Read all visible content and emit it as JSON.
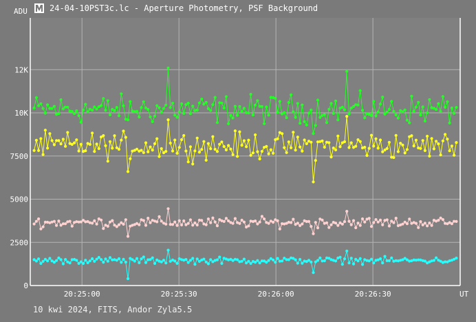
{
  "window": {
    "title": "24-04-10PST3c.lc - Aperture Photometry, PSF Background",
    "icon": "app-logo-icon"
  },
  "footer": {
    "text": "10 kwi 2024, FITS, Andor Zyla5.5"
  },
  "colors": {
    "background": "#7a7a7a",
    "plot_background": "#808080",
    "grid": "#b4b4b4",
    "series_green": "#22ff22",
    "series_yellow": "#ffff22",
    "series_pink": "#ffd2d2",
    "series_cyan": "#22ffff"
  },
  "chart_data": {
    "type": "scatter",
    "ylabel": "ADU",
    "xlabel": "UT",
    "y_ticks": [
      "0",
      "2500",
      "5000",
      "7500",
      "10K",
      "12K"
    ],
    "y_tick_values": [
      0,
      2500,
      5000,
      7500,
      10000,
      12500
    ],
    "x_ticks": [
      "20:25:00",
      "20:25:30",
      "20:26:00",
      "20:26:30"
    ],
    "x_tick_values": [
      "20:25:00",
      "20:25:30",
      "20:26:00",
      "20:26:30"
    ],
    "xlim": [
      "20:24:44",
      "20:26:57"
    ],
    "ylim": [
      0,
      15500
    ],
    "grid": true,
    "markers": "dots connected by lines",
    "series": [
      {
        "color": "#22ff22",
        "mean": 10200,
        "spread": 700,
        "low_dips": [
          9600,
          8800
        ],
        "high_peaks": [
          12600,
          12400
        ]
      },
      {
        "color": "#ffff22",
        "mean": 8100,
        "spread": 650,
        "low_dips": [
          6600,
          6000
        ],
        "high_peaks": [
          9600,
          9800
        ]
      },
      {
        "color": "#ffd2d2",
        "mean": 3650,
        "spread": 250,
        "low_dips": [
          2850,
          3000
        ],
        "high_peaks": [
          4450,
          4300
        ]
      },
      {
        "color": "#22ffff",
        "mean": 1450,
        "spread": 160,
        "low_dips": [
          400,
          750
        ],
        "high_peaks": [
          2050,
          2000
        ]
      }
    ]
  }
}
